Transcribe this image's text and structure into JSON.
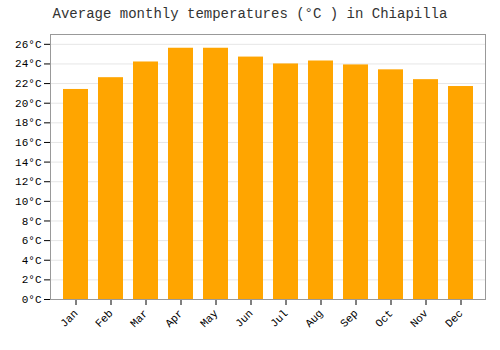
{
  "chart_data": {
    "type": "bar",
    "title": "Average monthly temperatures (°C ) in Chiapilla",
    "categories": [
      "Jan",
      "Feb",
      "Mar",
      "Apr",
      "May",
      "Jun",
      "Jul",
      "Aug",
      "Sep",
      "Oct",
      "Nov",
      "Dec"
    ],
    "values": [
      21.4,
      22.6,
      24.2,
      25.6,
      25.6,
      24.7,
      24.0,
      24.3,
      23.9,
      23.4,
      22.4,
      21.7
    ],
    "color": "#FFA500",
    "ylim": [
      0,
      27
    ],
    "yticks": [
      {
        "value": 0,
        "label": "0°C"
      },
      {
        "value": 2,
        "label": "2°C"
      },
      {
        "value": 4,
        "label": "4°C"
      },
      {
        "value": 6,
        "label": "6°C"
      },
      {
        "value": 8,
        "label": "8°C"
      },
      {
        "value": 10,
        "label": "10°C"
      },
      {
        "value": 12,
        "label": "12°C"
      },
      {
        "value": 14,
        "label": "14°C"
      },
      {
        "value": 16,
        "label": "16°C"
      },
      {
        "value": 18,
        "label": "18°C"
      },
      {
        "value": 20,
        "label": "20°C"
      },
      {
        "value": 22,
        "label": "22°C"
      },
      {
        "value": 24,
        "label": "24°C"
      },
      {
        "value": 26,
        "label": "26°C"
      }
    ],
    "grid": true
  }
}
